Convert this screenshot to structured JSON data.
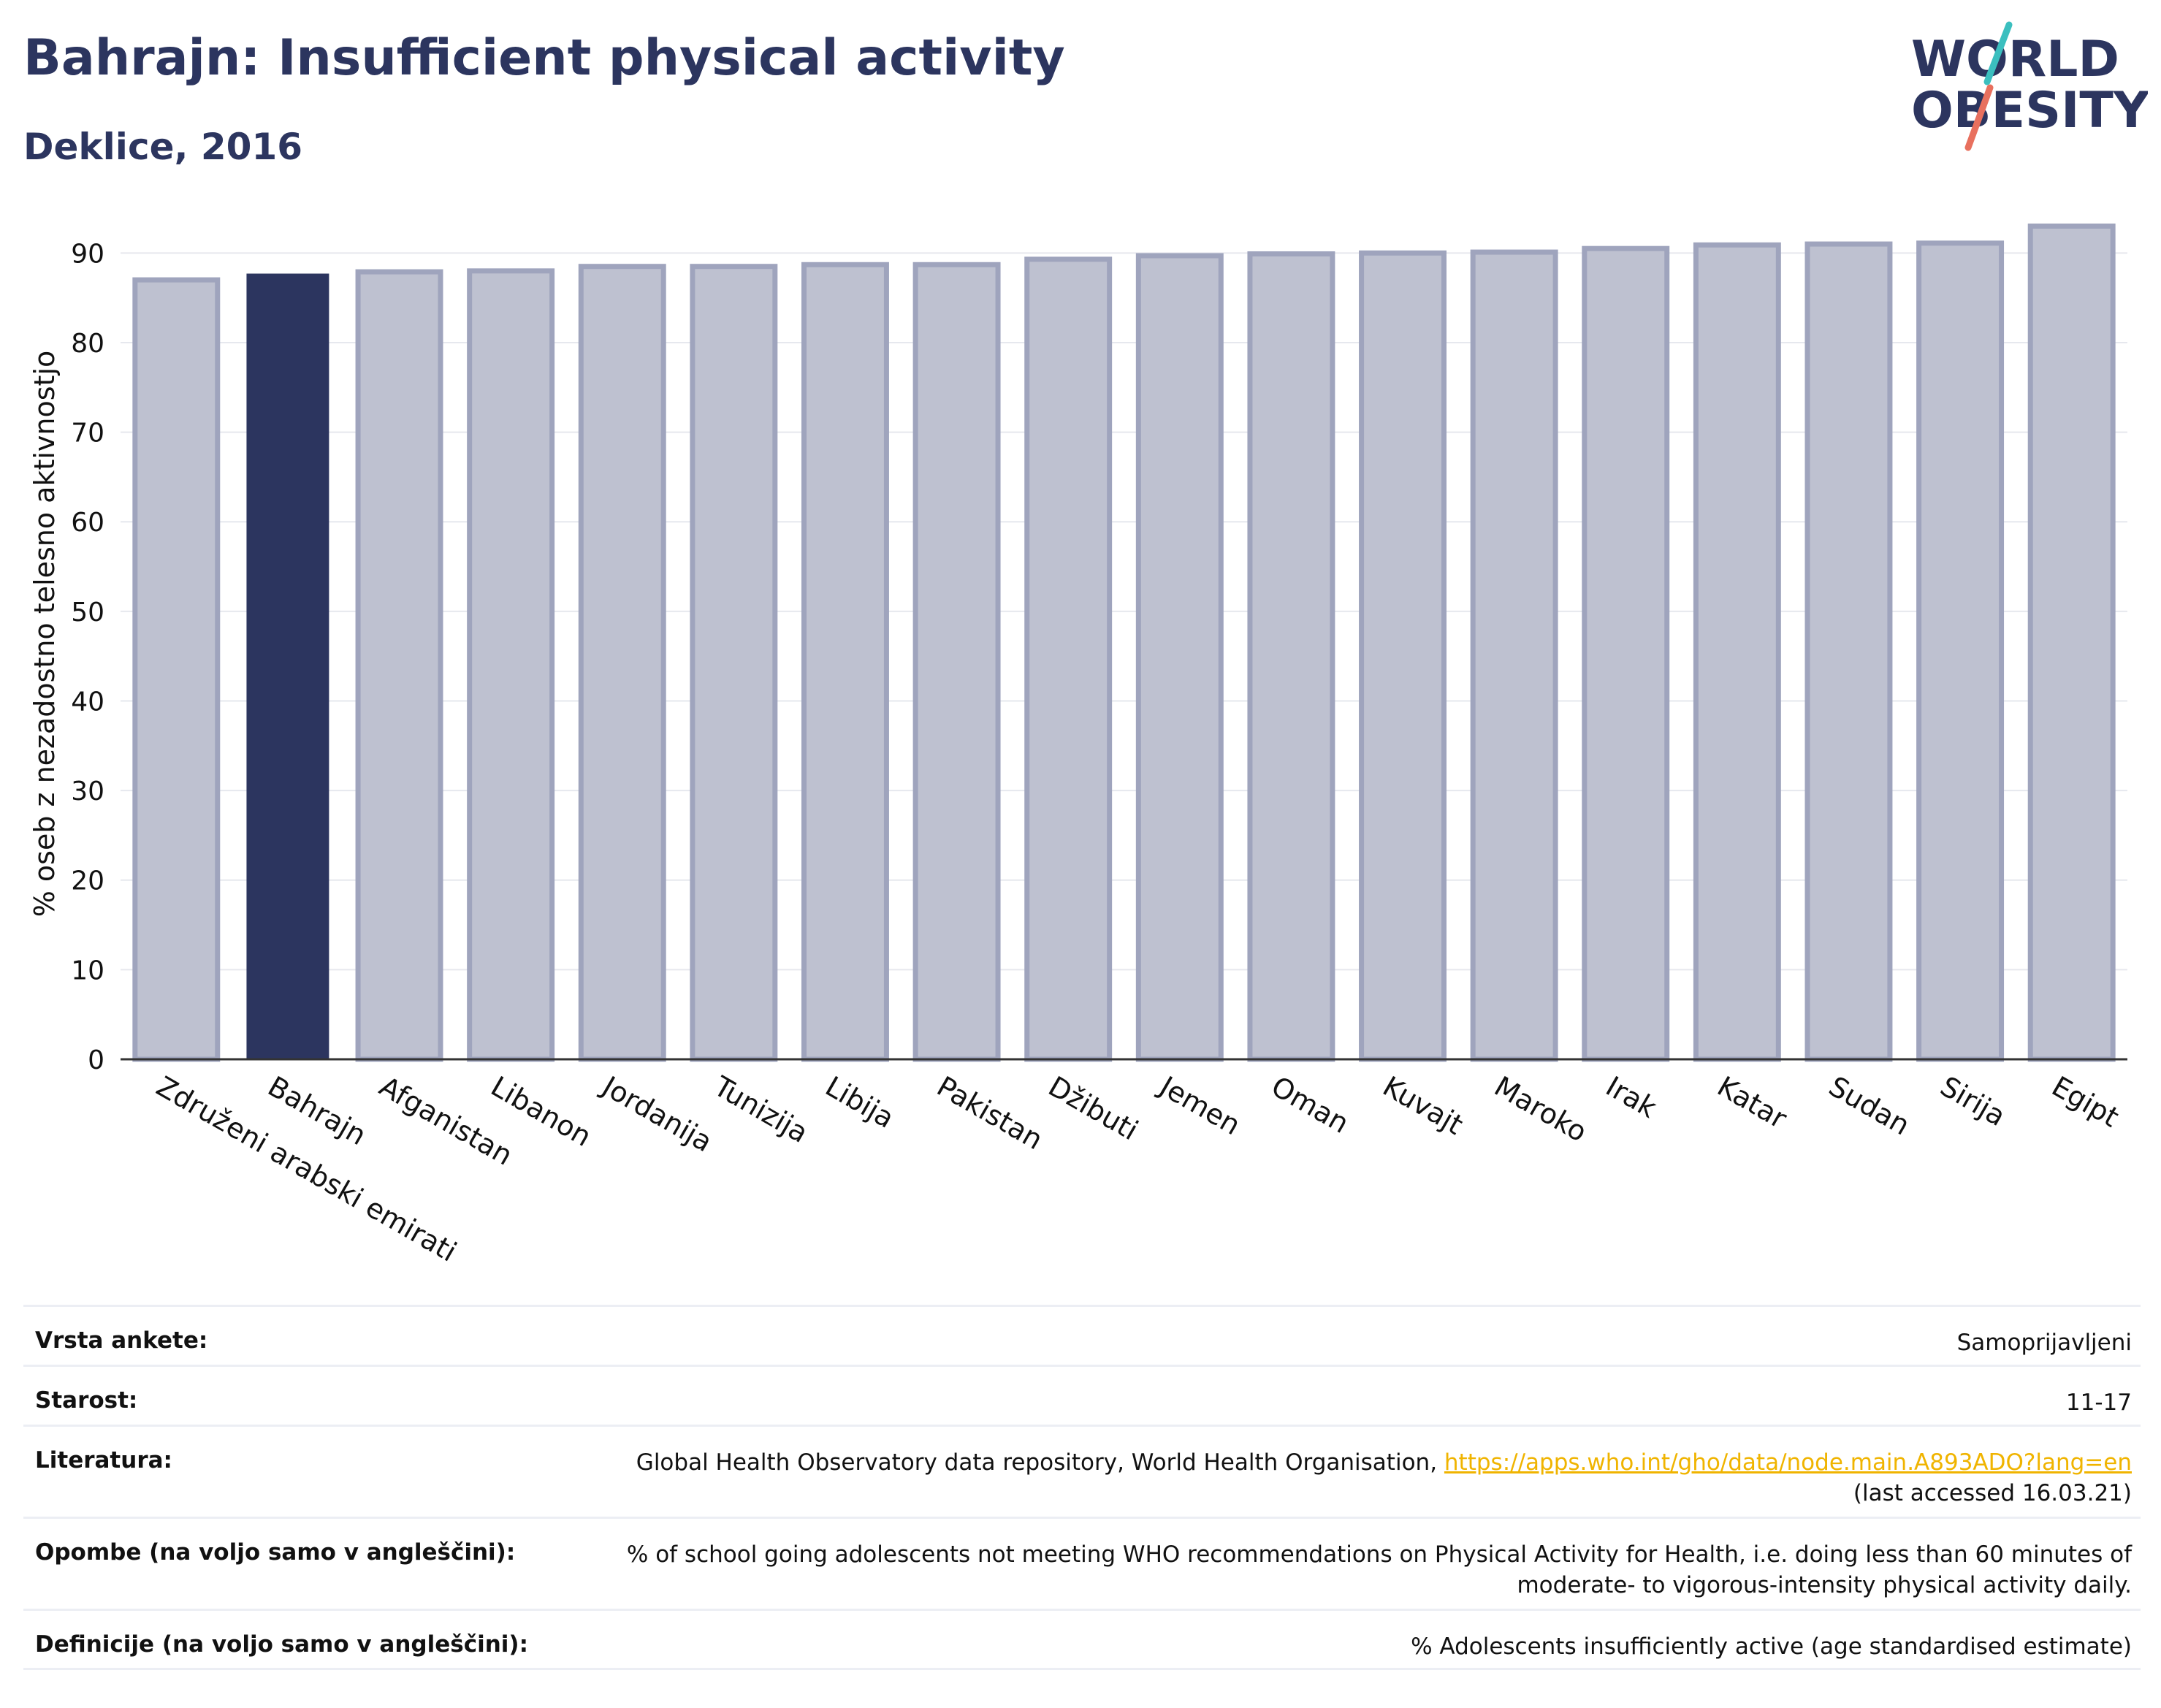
{
  "header": {
    "title": "Bahrajn: Insufficient physical activity",
    "subtitle": "Deklice, 2016"
  },
  "logo": {
    "line1": "WORLD",
    "line2": "OBESITY"
  },
  "chart_data": {
    "type": "bar",
    "ylabel": "% oseb z nezadostno telesno aktivnostjo",
    "ylim": [
      0,
      95
    ],
    "yticks": [
      0,
      10,
      20,
      30,
      40,
      50,
      60,
      70,
      80,
      90
    ],
    "grid": true,
    "highlight": "Bahrajn",
    "colors": {
      "highlight": "#2c355f",
      "bar_fill": "#bec1d0",
      "bar_edge": "#9fa4bd"
    },
    "categories": [
      "Združeni arabski emirati",
      "Bahrajn",
      "Afganistan",
      "Libanon",
      "Jordanija",
      "Tunizija",
      "Libija",
      "Pakistan",
      "Džibuti",
      "Jemen",
      "Oman",
      "Kuvajt",
      "Maroko",
      "Irak",
      "Katar",
      "Sudan",
      "Sirija",
      "Egipt"
    ],
    "values": [
      87.0,
      87.7,
      87.9,
      88.0,
      88.5,
      88.5,
      88.7,
      88.7,
      89.3,
      89.7,
      89.9,
      90.0,
      90.1,
      90.5,
      90.9,
      91.0,
      91.1,
      93.0
    ]
  },
  "info": {
    "rows": [
      {
        "label": "Vrsta ankete:",
        "value": "Samoprijavljeni"
      },
      {
        "label": "Starost:",
        "value": "11-17"
      },
      {
        "label": "Literatura:",
        "value": "Global Health Observatory data repository, World Health Organisation, ",
        "link": "https://apps.who.int/gho/data/node.main.A893ADO?lang=en",
        "value2": "(last accessed 16.03.21)"
      },
      {
        "label": "Opombe (na voljo samo v angleščini):",
        "value": "% of school going adolescents not meeting WHO recommendations on Physical Activity for Health, i.e. doing less than 60 minutes of moderate- to vigorous-intensity physical activity daily."
      },
      {
        "label": "Definicije (na voljo samo v angleščini):",
        "value": "% Adolescents insufficiently active (age standardised estimate)"
      }
    ]
  }
}
